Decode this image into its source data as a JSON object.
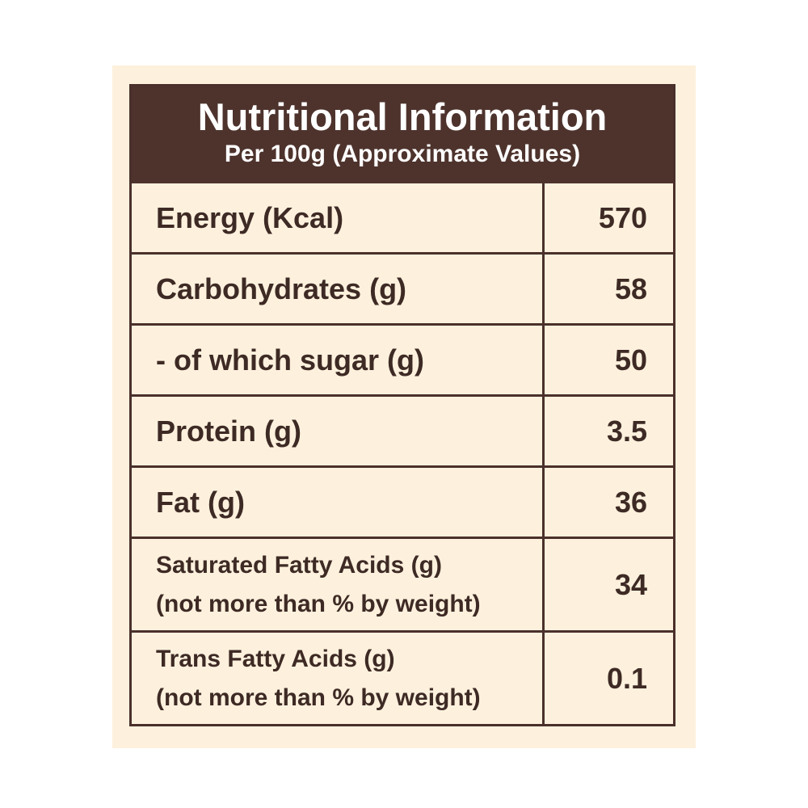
{
  "header": {
    "title": "Nutritional Information",
    "subtitle": "Per 100g (Approximate Values)"
  },
  "rows": [
    {
      "label": "Energy (Kcal)",
      "value": "570"
    },
    {
      "label": "Carbohydrates (g)",
      "value": "58"
    },
    {
      "label": "- of which sugar (g)",
      "value": "50"
    },
    {
      "label": "Protein (g)",
      "value": "3.5"
    },
    {
      "label": "Fat (g)",
      "value": "36"
    },
    {
      "label": "Saturated Fatty Acids (g)",
      "sublabel": "(not more than % by weight)",
      "value": "34"
    },
    {
      "label": "Trans Fatty Acids (g)",
      "sublabel": "(not more than % by weight)",
      "value": "0.1"
    }
  ],
  "colors": {
    "header_bg": "#4e332d",
    "border": "#4a302b",
    "background": "#fdf1dd",
    "text": "#3e2a25"
  }
}
